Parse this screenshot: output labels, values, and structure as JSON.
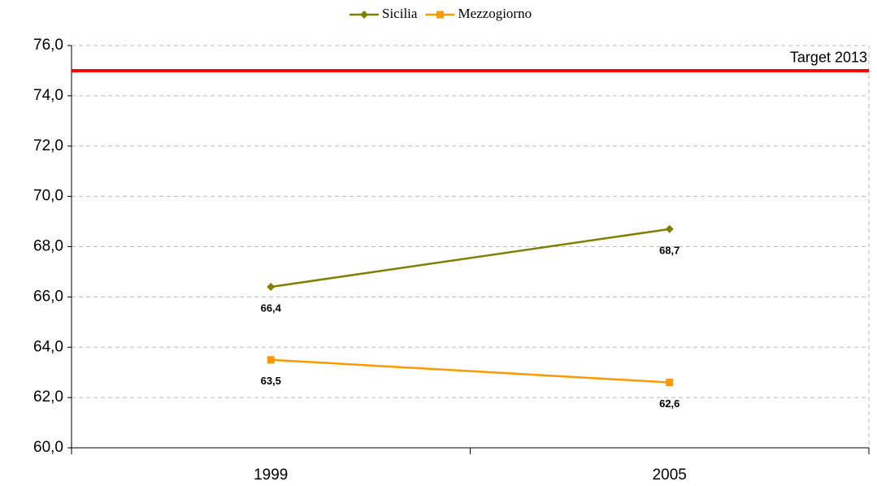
{
  "chart_data": {
    "type": "line",
    "categories": [
      "1999",
      "2005"
    ],
    "series": [
      {
        "name": "Sicilia",
        "color": "#808000",
        "marker": "diamond",
        "values": [
          66.4,
          68.7
        ],
        "value_labels": [
          "66,4",
          "68,7"
        ]
      },
      {
        "name": "Mezzogiorno",
        "color": "#ff9900",
        "marker": "square",
        "values": [
          63.5,
          62.6
        ],
        "value_labels": [
          "63,5",
          "62,6"
        ]
      }
    ],
    "ylim": [
      60,
      76
    ],
    "yticks": [
      {
        "value": 60,
        "label": "60,0"
      },
      {
        "value": 62,
        "label": "62,0"
      },
      {
        "value": 64,
        "label": "64,0"
      },
      {
        "value": 66,
        "label": "66,0"
      },
      {
        "value": 68,
        "label": "68,0"
      },
      {
        "value": 70,
        "label": "70,0"
      },
      {
        "value": 72,
        "label": "72,0"
      },
      {
        "value": 74,
        "label": "74,0"
      },
      {
        "value": 76,
        "label": "76,0"
      }
    ],
    "reference_line": {
      "value": 75,
      "label": "Target 2013",
      "color": "#ff0000"
    },
    "grid": true,
    "legend": "top"
  }
}
